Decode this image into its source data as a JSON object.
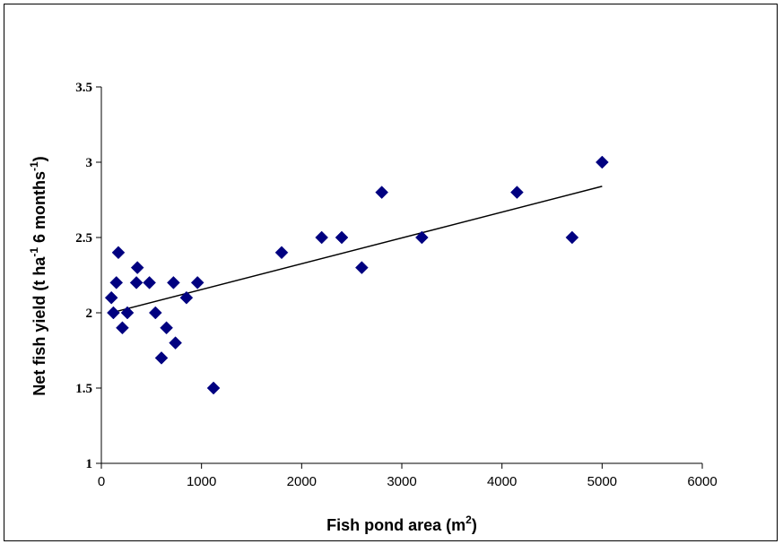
{
  "chart_data": {
    "type": "scatter",
    "xlabel": "Fish pond area (m",
    "xlabel_sup": "2",
    "xlabel_end": ")",
    "ylabel": {
      "part1": "Net fish yield (t ha",
      "sup1": "-1",
      "part2": " 6 months",
      "sup2": "-1",
      "part3": ")"
    },
    "xlim": [
      0,
      6000
    ],
    "ylim": [
      1,
      3.5
    ],
    "x_ticks": [
      0,
      1000,
      2000,
      3000,
      4000,
      5000,
      6000
    ],
    "y_ticks": [
      "1",
      "1.5",
      "2",
      "2.5",
      "3",
      "3.5"
    ],
    "y_tick_values": [
      1,
      1.5,
      2,
      2.5,
      3,
      3.5
    ],
    "grid": false,
    "legend": "none",
    "marker_color": "#000080",
    "trendline_color": "#000000",
    "points": [
      {
        "x": 100,
        "y": 2.1
      },
      {
        "x": 120,
        "y": 2.0
      },
      {
        "x": 150,
        "y": 2.2
      },
      {
        "x": 170,
        "y": 2.4
      },
      {
        "x": 210,
        "y": 1.9
      },
      {
        "x": 260,
        "y": 2.0
      },
      {
        "x": 350,
        "y": 2.2
      },
      {
        "x": 360,
        "y": 2.3
      },
      {
        "x": 480,
        "y": 2.2
      },
      {
        "x": 540,
        "y": 2.0
      },
      {
        "x": 600,
        "y": 1.7
      },
      {
        "x": 650,
        "y": 1.9
      },
      {
        "x": 720,
        "y": 2.2
      },
      {
        "x": 740,
        "y": 1.8
      },
      {
        "x": 850,
        "y": 2.1
      },
      {
        "x": 960,
        "y": 2.2
      },
      {
        "x": 1120,
        "y": 1.5
      },
      {
        "x": 1800,
        "y": 2.4
      },
      {
        "x": 2200,
        "y": 2.5
      },
      {
        "x": 2400,
        "y": 2.5
      },
      {
        "x": 2600,
        "y": 2.3
      },
      {
        "x": 2800,
        "y": 2.8
      },
      {
        "x": 3200,
        "y": 2.5
      },
      {
        "x": 4150,
        "y": 2.8
      },
      {
        "x": 4700,
        "y": 2.5
      },
      {
        "x": 5000,
        "y": 3.0
      }
    ],
    "trendline": [
      {
        "x": 100,
        "y": 2.0
      },
      {
        "x": 5000,
        "y": 2.84
      }
    ]
  }
}
